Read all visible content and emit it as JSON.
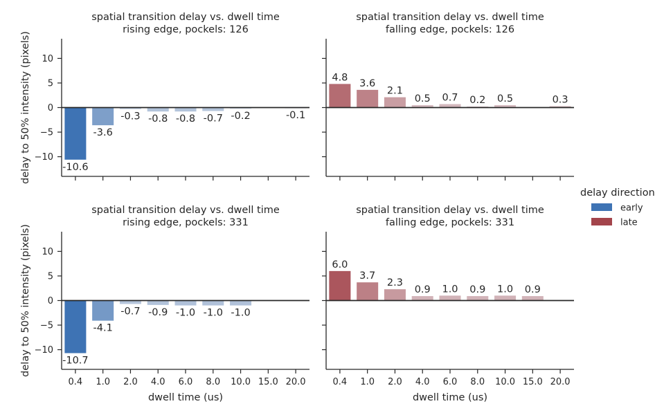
{
  "figure": {
    "legend": {
      "title": "delay direction",
      "placement": "center-right",
      "entries": [
        {
          "name": "early",
          "color": "#3e73b4"
        },
        {
          "name": "late",
          "color": "#a3444b"
        }
      ]
    }
  },
  "chart_data": [
    {
      "type": "bar",
      "title": "spatial transition delay vs. dwell time\nrising edge, pockels: 126",
      "xlabel": "",
      "ylabel": "delay to 50% intensity (pixels)",
      "categories": [
        "0.4",
        "1.0",
        "2.0",
        "4.0",
        "6.0",
        "8.0",
        "10.0",
        "15.0",
        "20.0"
      ],
      "values": [
        -10.6,
        -3.6,
        -0.3,
        -0.8,
        -0.8,
        -0.7,
        -0.2,
        null,
        -0.1
      ],
      "labels": [
        "-10.6",
        "-3.6",
        "-0.3",
        "-0.8",
        "-0.8",
        "-0.7",
        "-0.2",
        "",
        "-0.1"
      ],
      "direction": "early",
      "ylim": [
        -14,
        14
      ],
      "yticks": [
        -10,
        -5,
        0,
        5,
        10
      ],
      "ytick_labels": [
        "−10",
        "−5",
        "0",
        "5",
        "10"
      ],
      "show_x_ticklabels": false,
      "show_y_ticklabels": true
    },
    {
      "type": "bar",
      "title": "spatial transition delay vs. dwell time\nfalling edge, pockels: 126",
      "xlabel": "",
      "ylabel": "",
      "categories": [
        "0.4",
        "1.0",
        "2.0",
        "4.0",
        "6.0",
        "8.0",
        "10.0",
        "15.0",
        "20.0"
      ],
      "values": [
        4.8,
        3.6,
        2.1,
        0.5,
        0.7,
        0.2,
        0.5,
        null,
        0.3
      ],
      "labels": [
        "4.8",
        "3.6",
        "2.1",
        "0.5",
        "0.7",
        "0.2",
        "0.5",
        "",
        "0.3"
      ],
      "direction": "late",
      "ylim": [
        -14,
        14
      ],
      "yticks": [
        -10,
        -5,
        0,
        5,
        10
      ],
      "ytick_labels": [
        "−10",
        "−5",
        "0",
        "5",
        "10"
      ],
      "show_x_ticklabels": false,
      "show_y_ticklabels": false
    },
    {
      "type": "bar",
      "title": "spatial transition delay vs. dwell time\nrising edge, pockels: 331",
      "xlabel": "dwell time (us)",
      "ylabel": "delay to 50% intensity (pixels)",
      "categories": [
        "0.4",
        "1.0",
        "2.0",
        "4.0",
        "6.0",
        "8.0",
        "10.0",
        "15.0",
        "20.0"
      ],
      "values": [
        -10.7,
        -4.1,
        -0.7,
        -0.9,
        -1.0,
        -1.0,
        -1.0,
        null,
        null
      ],
      "labels": [
        "-10.7",
        "-4.1",
        "-0.7",
        "-0.9",
        "-1.0",
        "-1.0",
        "-1.0",
        "",
        ""
      ],
      "direction": "early",
      "ylim": [
        -14,
        14
      ],
      "yticks": [
        -10,
        -5,
        0,
        5,
        10
      ],
      "ytick_labels": [
        "−10",
        "−5",
        "0",
        "5",
        "10"
      ],
      "show_x_ticklabels": true,
      "show_y_ticklabels": true
    },
    {
      "type": "bar",
      "title": "spatial transition delay vs. dwell time\nfalling edge, pockels: 331",
      "xlabel": "dwell time (us)",
      "ylabel": "",
      "categories": [
        "0.4",
        "1.0",
        "2.0",
        "4.0",
        "6.0",
        "8.0",
        "10.0",
        "15.0",
        "20.0"
      ],
      "values": [
        6.0,
        3.7,
        2.3,
        0.9,
        1.0,
        0.9,
        1.0,
        0.9,
        null
      ],
      "labels": [
        "6.0",
        "3.7",
        "2.3",
        "0.9",
        "1.0",
        "0.9",
        "1.0",
        "0.9",
        ""
      ],
      "direction": "late",
      "ylim": [
        -14,
        14
      ],
      "yticks": [
        -10,
        -5,
        0,
        5,
        10
      ],
      "ytick_labels": [
        "−10",
        "−5",
        "0",
        "5",
        "10"
      ],
      "show_x_ticklabels": true,
      "show_y_ticklabels": false
    }
  ]
}
